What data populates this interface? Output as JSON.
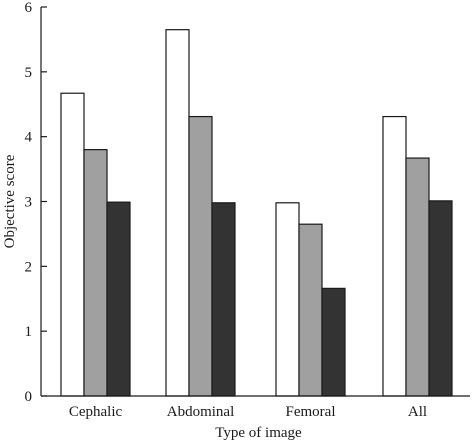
{
  "chart_data": {
    "type": "bar",
    "title": "",
    "xlabel": "Type of image",
    "ylabel": "Objective score",
    "categories": [
      "Cephalic",
      "Abdominal",
      "Femoral",
      "All"
    ],
    "series": [
      {
        "values": [
          4.67,
          5.65,
          2.98,
          4.31
        ],
        "color": "#ffffff"
      },
      {
        "values": [
          3.8,
          4.31,
          2.65,
          3.67
        ],
        "color": "#a0a0a0"
      },
      {
        "values": [
          2.99,
          2.98,
          1.66,
          3.01
        ],
        "color": "#333333"
      }
    ],
    "ylim": [
      0,
      6
    ],
    "yticks": [
      "0",
      "1",
      "2",
      "3",
      "4",
      "5",
      "6"
    ],
    "grid": false,
    "legend": "none"
  }
}
